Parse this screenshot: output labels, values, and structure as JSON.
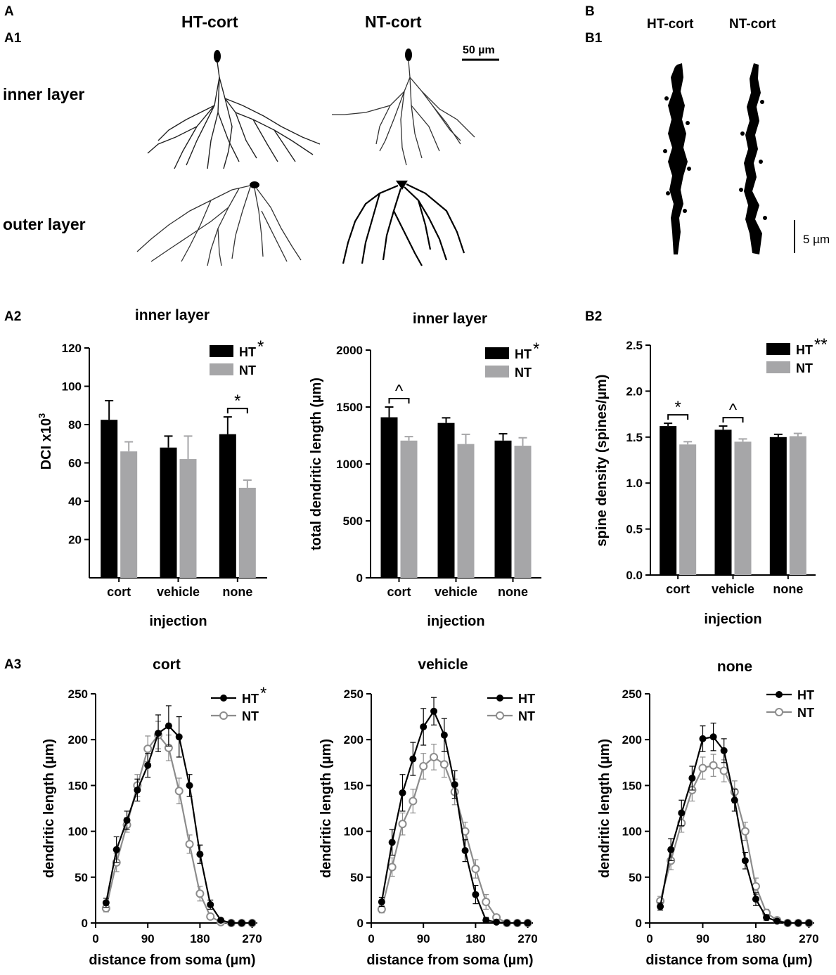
{
  "panels": {
    "a": "A",
    "a1": "A1",
    "a2": "A2",
    "a3": "A3",
    "b": "B",
    "b1": "B1",
    "b2": "B2"
  },
  "a1": {
    "col_ht": "HT-cort",
    "col_nt": "NT-cort",
    "row_inner": "inner layer",
    "row_outer": "outer layer",
    "scale_bar": "50 µm"
  },
  "b1": {
    "col_ht": "HT-cort",
    "col_nt": "NT-cort",
    "scale_bar": "5 µm"
  },
  "colors": {
    "ht": "#000000",
    "nt": "#a6a6a8",
    "nt_line": "#8c8c8c"
  },
  "chart_data": [
    {
      "id": "dci",
      "type": "bar",
      "title": "inner layer",
      "xlabel": "injection",
      "ylabel": "DCI x10³",
      "ylabel_main": "DCI x10",
      "ylabel_sup": "3",
      "categories": [
        "cort",
        "vehicle",
        "none"
      ],
      "ylim": [
        0,
        120
      ],
      "yticks": [
        20,
        40,
        60,
        80,
        100,
        120
      ],
      "legend_marks": [
        "*",
        ""
      ],
      "series": [
        {
          "name": "HT",
          "values": [
            82.5,
            68,
            75
          ],
          "errors": [
            10,
            6,
            9
          ]
        },
        {
          "name": "NT",
          "values": [
            66,
            62,
            47
          ],
          "errors": [
            5,
            12,
            4
          ]
        }
      ],
      "annotations": [
        {
          "category": "none",
          "text": "*"
        }
      ]
    },
    {
      "id": "tdl",
      "type": "bar",
      "title": "inner layer",
      "xlabel": "injection",
      "ylabel": "total dendritic length (µm)",
      "categories": [
        "cort",
        "vehicle",
        "none"
      ],
      "ylim": [
        0,
        2000
      ],
      "yticks": [
        0,
        500,
        1000,
        1500,
        2000
      ],
      "legend_marks": [
        "*",
        ""
      ],
      "series": [
        {
          "name": "HT",
          "values": [
            1410,
            1360,
            1205
          ],
          "errors": [
            90,
            45,
            60
          ]
        },
        {
          "name": "NT",
          "values": [
            1205,
            1175,
            1160
          ],
          "errors": [
            35,
            85,
            70
          ]
        }
      ],
      "annotations": [
        {
          "category": "cort",
          "text": "^"
        }
      ]
    },
    {
      "id": "spine",
      "type": "bar",
      "title": "",
      "xlabel": "injection",
      "ylabel": "spine density (spines/µm)",
      "categories": [
        "cort",
        "vehicle",
        "none"
      ],
      "ylim": [
        0,
        2.5
      ],
      "yticks": [
        0.0,
        0.5,
        1.0,
        1.5,
        2.0,
        2.5
      ],
      "legend_marks": [
        "**",
        ""
      ],
      "series": [
        {
          "name": "HT",
          "values": [
            1.62,
            1.58,
            1.5
          ],
          "errors": [
            0.03,
            0.04,
            0.03
          ]
        },
        {
          "name": "NT",
          "values": [
            1.42,
            1.45,
            1.51
          ],
          "errors": [
            0.03,
            0.03,
            0.03
          ]
        }
      ],
      "annotations": [
        {
          "category": "cort",
          "text": "*"
        },
        {
          "category": "vehicle",
          "text": "^"
        }
      ]
    },
    {
      "id": "sholl-cort",
      "type": "line",
      "title": "cort",
      "xlabel": "distance from soma (µm)",
      "ylabel": "dendritic length (µm)",
      "x": [
        18,
        36,
        54,
        72,
        90,
        108,
        126,
        144,
        162,
        180,
        198,
        216,
        234,
        252,
        270
      ],
      "xlim": [
        0,
        279
      ],
      "xticks": [
        0,
        90,
        180,
        270
      ],
      "ylim": [
        0,
        250
      ],
      "yticks": [
        0,
        50,
        100,
        150,
        200,
        250
      ],
      "legend_marks": [
        "*",
        ""
      ],
      "series": [
        {
          "name": "HT",
          "values": [
            22,
            80,
            112,
            145,
            172,
            207,
            215,
            203,
            150,
            75,
            20,
            3,
            0,
            0,
            0
          ],
          "errors": [
            5,
            14,
            10,
            12,
            13,
            20,
            22,
            22,
            12,
            10,
            5,
            1,
            0,
            0,
            0
          ]
        },
        {
          "name": "NT",
          "values": [
            16,
            66,
            107,
            150,
            190,
            205,
            191,
            144,
            86,
            32,
            7,
            1,
            0,
            0,
            0
          ],
          "errors": [
            4,
            10,
            8,
            12,
            14,
            15,
            14,
            14,
            10,
            8,
            3,
            1,
            0,
            0,
            0
          ]
        }
      ]
    },
    {
      "id": "sholl-vehicle",
      "type": "line",
      "title": "vehicle",
      "xlabel": "distance from soma (µm)",
      "ylabel": "dendritic length (µm)",
      "x": [
        18,
        36,
        54,
        72,
        90,
        108,
        126,
        144,
        162,
        180,
        198,
        216,
        234,
        252,
        270
      ],
      "xlim": [
        0,
        279
      ],
      "xticks": [
        0,
        90,
        180,
        270
      ],
      "ylim": [
        0,
        250
      ],
      "yticks": [
        0,
        50,
        100,
        150,
        200,
        250
      ],
      "legend_marks": [
        "",
        ""
      ],
      "series": [
        {
          "name": "HT",
          "values": [
            23,
            88,
            142,
            179,
            214,
            231,
            205,
            151,
            79,
            31,
            3,
            1,
            0,
            0,
            0
          ],
          "errors": [
            5,
            14,
            20,
            18,
            20,
            15,
            18,
            15,
            12,
            10,
            3,
            1,
            0,
            0,
            0
          ]
        },
        {
          "name": "NT",
          "values": [
            15,
            61,
            108,
            133,
            171,
            181,
            173,
            143,
            100,
            59,
            23,
            6,
            0,
            0,
            0
          ],
          "errors": [
            4,
            10,
            12,
            13,
            14,
            14,
            14,
            14,
            10,
            10,
            8,
            3,
            0,
            0,
            0
          ]
        }
      ]
    },
    {
      "id": "sholl-none",
      "type": "line",
      "title": "none",
      "xlabel": "distance from soma (µm)",
      "ylabel": "dendritic length (µm)",
      "x": [
        18,
        36,
        54,
        72,
        90,
        108,
        126,
        144,
        162,
        180,
        198,
        216,
        234,
        252,
        270
      ],
      "xlim": [
        0,
        279
      ],
      "xticks": [
        0,
        90,
        180,
        270
      ],
      "ylim": [
        0,
        250
      ],
      "yticks": [
        0,
        50,
        100,
        150,
        200,
        250
      ],
      "legend_marks": [
        "",
        ""
      ],
      "series": [
        {
          "name": "HT",
          "values": [
            18,
            80,
            120,
            158,
            201,
            203,
            188,
            134,
            68,
            26,
            6,
            2,
            0,
            0,
            0
          ],
          "errors": [
            4,
            12,
            14,
            13,
            14,
            15,
            13,
            12,
            9,
            7,
            3,
            1,
            0,
            0,
            0
          ]
        },
        {
          "name": "NT",
          "values": [
            24,
            68,
            109,
            145,
            169,
            172,
            166,
            143,
            100,
            40,
            11,
            3,
            0,
            0,
            0
          ],
          "errors": [
            5,
            10,
            10,
            12,
            12,
            12,
            12,
            12,
            10,
            9,
            4,
            1,
            0,
            0,
            0
          ]
        }
      ]
    }
  ]
}
